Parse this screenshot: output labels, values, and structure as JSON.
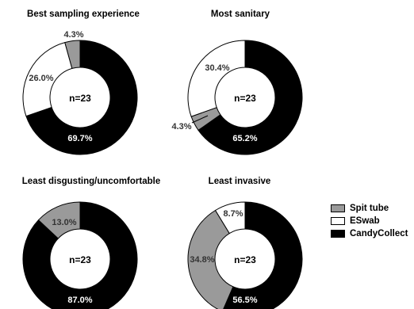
{
  "chart_data": [
    {
      "type": "pie",
      "title": "Best sampling experience",
      "center_label": "n=23",
      "slices": [
        {
          "label": "CandyCollect",
          "value": 69.7,
          "display": "69.7%"
        },
        {
          "label": "ESwab",
          "value": 26.0,
          "display": "26.0%"
        },
        {
          "label": "Spit tube",
          "value": 4.3,
          "display": "4.3%"
        }
      ]
    },
    {
      "type": "pie",
      "title": "Most sanitary",
      "center_label": "n=23",
      "slices": [
        {
          "label": "CandyCollect",
          "value": 65.2,
          "display": "65.2%"
        },
        {
          "label": "Spit tube",
          "value": 4.3,
          "display": "4.3%"
        },
        {
          "label": "ESwab",
          "value": 30.4,
          "display": "30.4%"
        }
      ]
    },
    {
      "type": "pie",
      "title": "Least disgusting/uncomfortable",
      "center_label": "n=23",
      "slices": [
        {
          "label": "CandyCollect",
          "value": 87.0,
          "display": "87.0%"
        },
        {
          "label": "Spit tube",
          "value": 13.0,
          "display": "13.0%"
        }
      ]
    },
    {
      "type": "pie",
      "title": "Least invasive",
      "center_label": "n=23",
      "slices": [
        {
          "label": "CandyCollect",
          "value": 56.5,
          "display": "56.5%"
        },
        {
          "label": "Spit tube",
          "value": 34.8,
          "display": "34.8%"
        },
        {
          "label": "ESwab",
          "value": 8.7,
          "display": "8.7%"
        }
      ]
    }
  ],
  "legend": {
    "placement": "right",
    "items": [
      {
        "label": "Spit tube",
        "color": "#9a9a9a"
      },
      {
        "label": "ESwab",
        "color": "#ffffff"
      },
      {
        "label": "CandyCollect",
        "color": "#000000"
      }
    ]
  },
  "colors": {
    "Spit tube": "#9a9a9a",
    "ESwab": "#ffffff",
    "CandyCollect": "#000000"
  }
}
